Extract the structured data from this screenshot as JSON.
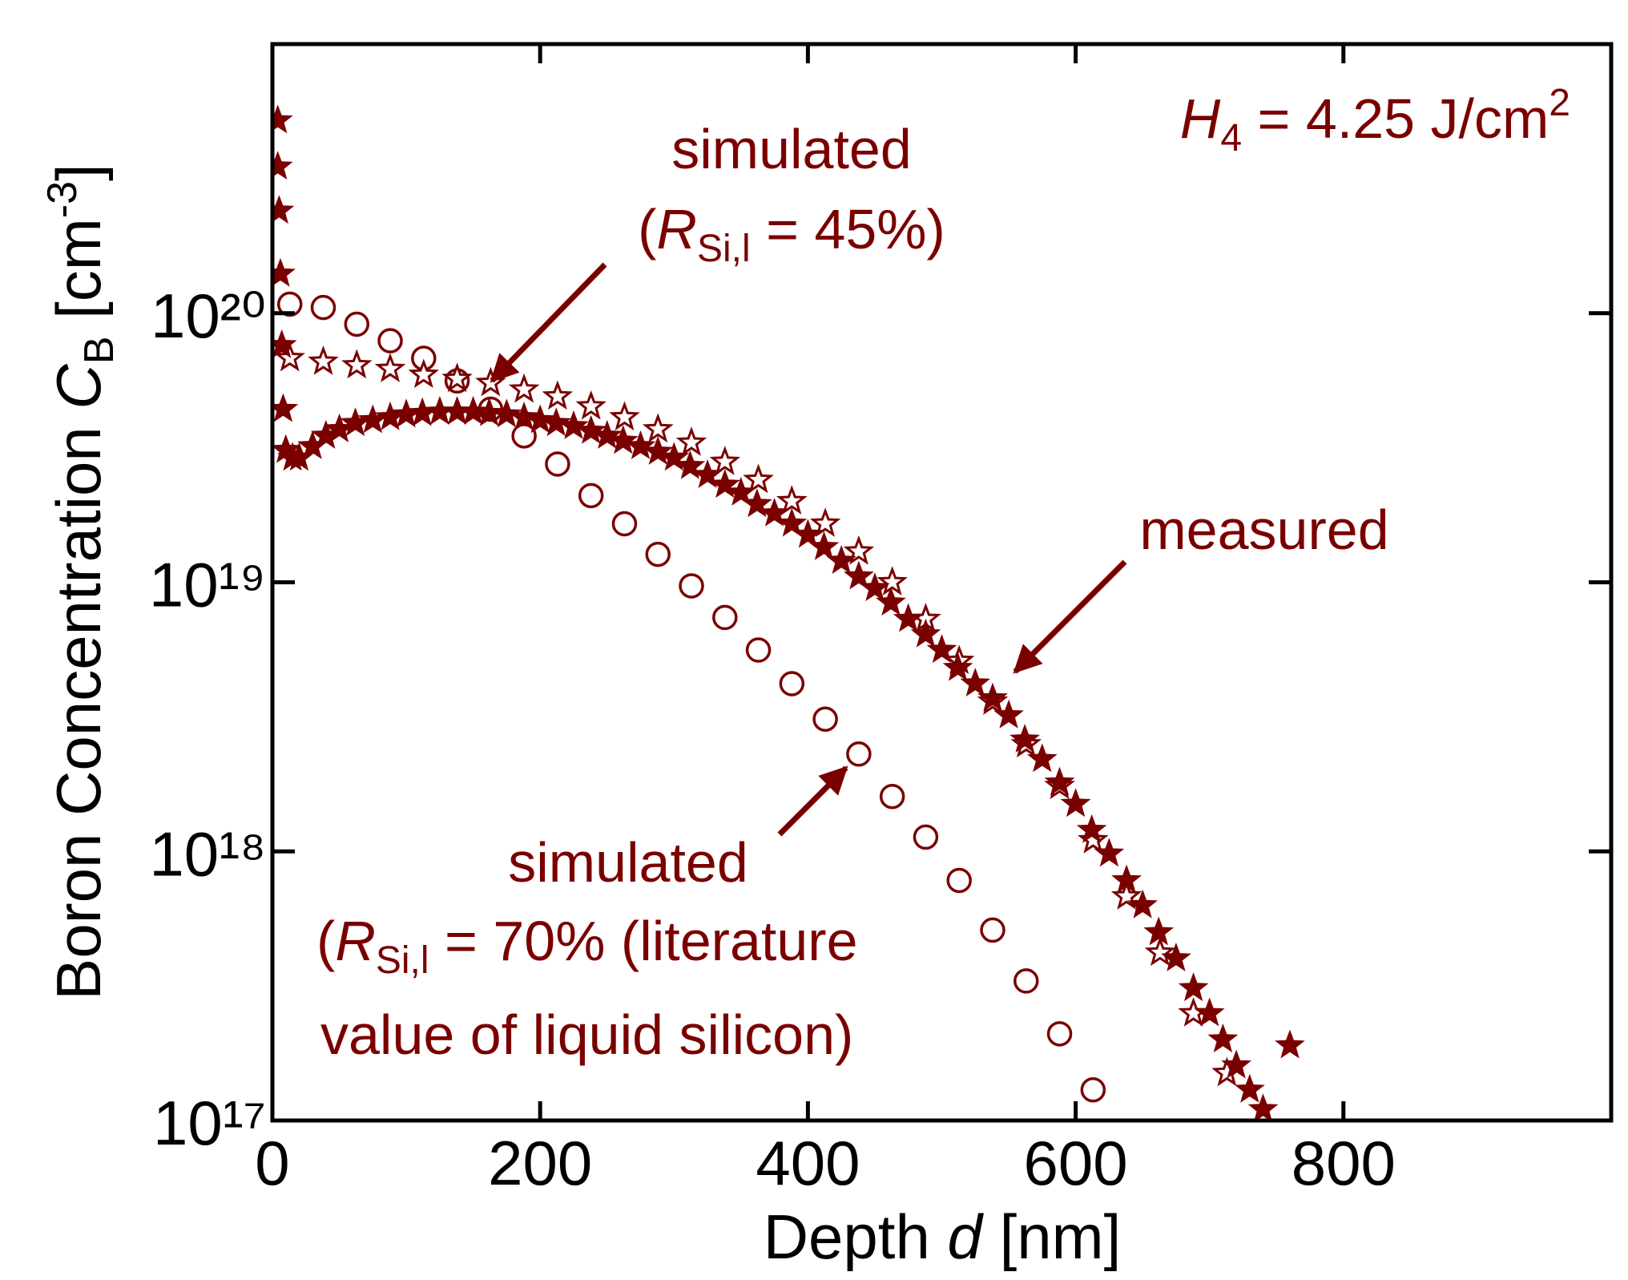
{
  "chart_data": {
    "type": "scatter",
    "xlabel": [
      "Depth ",
      "d",
      " [nm]"
    ],
    "ylabel": [
      "Boron Concentration ",
      "C",
      "B",
      " [cm",
      "-3",
      "]"
    ],
    "xlim": [
      0,
      1000
    ],
    "ylim": [
      1e+17,
      1e+21
    ],
    "xticks": [
      0,
      200,
      400,
      600,
      800
    ],
    "yticks": [
      {
        "value": 1e+17,
        "label": "10¹⁷"
      },
      {
        "value": 1e+18,
        "label": "10¹⁸"
      },
      {
        "value": 1e+19,
        "label": "10¹⁹"
      },
      {
        "value": 1e+20,
        "label": "10²⁰"
      }
    ],
    "log_y": true,
    "color": "#7a0000",
    "annotations": {
      "fluence": [
        "H",
        "4",
        " = 4.25 J/cm",
        "2"
      ],
      "sim45": [
        "simulated",
        "(",
        "R",
        "Si,l",
        " = 45%)"
      ],
      "measured": "measured",
      "sim70": [
        "simulated",
        "(",
        "R",
        "Si,l",
        " = 70% (literature",
        "value of liquid silicon)"
      ]
    },
    "series": [
      {
        "marker": "circle",
        "x": [
          13,
          38,
          63,
          88,
          113,
          138,
          163,
          188,
          213,
          238,
          263,
          288,
          313,
          338,
          363,
          388,
          413,
          438,
          463,
          488,
          513,
          538,
          563,
          588,
          613
        ],
        "values": [
          1.08e+20,
          1.05e+20,
          9.1e+19,
          7.9e+19,
          6.8e+19,
          5.6e+19,
          4.4e+19,
          3.5e+19,
          2.75e+19,
          2.1e+19,
          1.65e+19,
          1.27e+19,
          9.7e+18,
          7.4e+18,
          5.6e+18,
          4.2e+18,
          3.1e+18,
          2.3e+18,
          1.6e+18,
          1.13e+18,
          7.8e+17,
          5.1e+17,
          3.3e+17,
          2.1e+17,
          1.3e+17
        ]
      },
      {
        "marker": "star-open",
        "x": [
          13,
          38,
          63,
          88,
          113,
          138,
          163,
          188,
          213,
          238,
          263,
          288,
          313,
          338,
          363,
          388,
          413,
          438,
          463,
          488,
          513,
          538,
          563,
          588,
          613,
          638,
          663,
          688,
          713
        ],
        "values": [
          6.8e+19,
          6.6e+19,
          6.4e+19,
          6.2e+19,
          5.9e+19,
          5.7e+19,
          5.5e+19,
          5.2e+19,
          4.9e+19,
          4.5e+19,
          4.1e+19,
          3.7e+19,
          3.3e+19,
          2.8e+19,
          2.4e+19,
          2e+19,
          1.65e+19,
          1.3e+19,
          1e+19,
          7.3e+18,
          5.1e+18,
          3.6e+18,
          2.5e+18,
          1.75e+18,
          1.1e+18,
          6.8e+17,
          4.2e+17,
          2.5e+17,
          1.5e+17
        ]
      },
      {
        "marker": "star-filled",
        "x": [
          4,
          4,
          5,
          6,
          7,
          8,
          10,
          15,
          20,
          30,
          40,
          50,
          62,
          75,
          88,
          100,
          112,
          125,
          138,
          150,
          162,
          175,
          188,
          200,
          212,
          225,
          238,
          250,
          262,
          275,
          288,
          300,
          312,
          325,
          338,
          350,
          362,
          375,
          388,
          400,
          412,
          425,
          438,
          450,
          462,
          475,
          488,
          500,
          512,
          525,
          538,
          550,
          562,
          575,
          588,
          600,
          612,
          625,
          638,
          650,
          662,
          675,
          688,
          700,
          710,
          720,
          730,
          740,
          760
        ],
        "values": [
          5.2e+20,
          3.5e+20,
          2.4e+20,
          1.4e+20,
          7.6e+19,
          4.4e+19,
          3.1e+19,
          2.9e+19,
          2.9e+19,
          3.2e+19,
          3.5e+19,
          3.7e+19,
          3.9e+19,
          4e+19,
          4.1e+19,
          4.2e+19,
          4.25e+19,
          4.3e+19,
          4.3e+19,
          4.3e+19,
          4.25e+19,
          4.2e+19,
          4.1e+19,
          4e+19,
          3.9e+19,
          3.8e+19,
          3.65e+19,
          3.5e+19,
          3.35e+19,
          3.2e+19,
          3.05e+19,
          2.9e+19,
          2.7e+19,
          2.5e+19,
          2.3e+19,
          2.15e+19,
          1.95e+19,
          1.8e+19,
          1.65e+19,
          1.5e+19,
          1.35e+19,
          1.2e+19,
          1.05e+19,
          9.5e+18,
          8.4e+18,
          7.3e+18,
          6.4e+18,
          5.6e+18,
          4.8e+18,
          4.2e+18,
          3.7e+18,
          3.2e+18,
          2.6e+18,
          2.2e+18,
          1.8e+18,
          1.5e+18,
          1.2e+18,
          9.8e+17,
          7.8e+17,
          6.3e+17,
          5e+17,
          4e+17,
          3.1e+17,
          2.5e+17,
          2e+17,
          1.6e+17,
          1.3e+17,
          1.1e+17,
          1.9e+17
        ]
      }
    ]
  }
}
